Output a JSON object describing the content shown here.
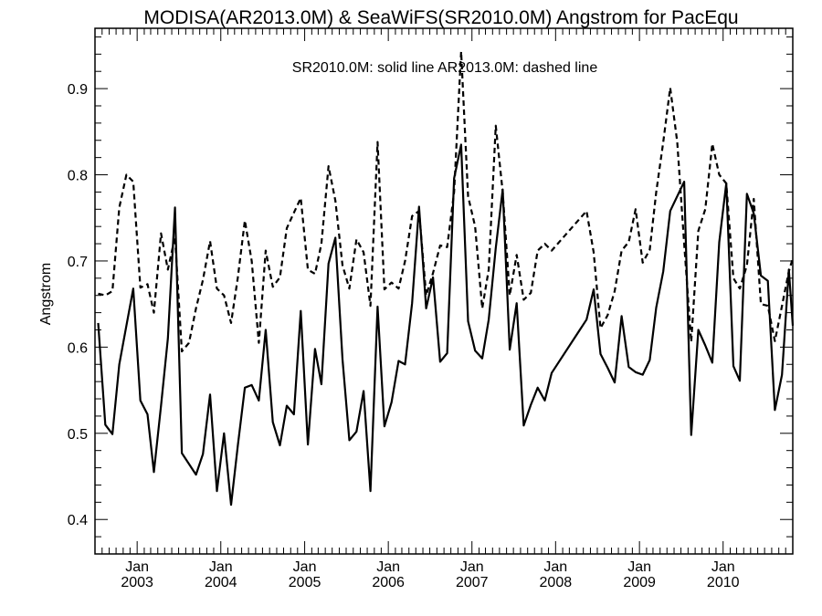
{
  "chart_data": {
    "type": "line",
    "title": "MODISA(AR2013.0M) & SeaWiFS(SR2010.0M)  Angstrom for PacEqu",
    "annotation": "SR2010.0M: solid line   AR2013.0M: dashed line",
    "ylabel": "Angstrom",
    "xlabel": "",
    "xlim": [
      "2002-07-01",
      "2010-11-01"
    ],
    "ylim": [
      0.36,
      0.97
    ],
    "y_ticks": [
      0.4,
      0.5,
      0.6,
      0.7,
      0.8,
      0.9
    ],
    "y_tick_labels": [
      "0.4",
      "0.5",
      "0.6",
      "0.7",
      "0.8",
      "0.9"
    ],
    "x_ticks": [
      {
        "date": "2003-01-01",
        "month_label": "Jan",
        "year_label": "2003"
      },
      {
        "date": "2004-01-01",
        "month_label": "Jan",
        "year_label": "2004"
      },
      {
        "date": "2005-01-01",
        "month_label": "Jan",
        "year_label": "2005"
      },
      {
        "date": "2006-01-01",
        "month_label": "Jan",
        "year_label": "2006"
      },
      {
        "date": "2007-01-01",
        "month_label": "Jan",
        "year_label": "2007"
      },
      {
        "date": "2008-01-01",
        "month_label": "Jan",
        "year_label": "2008"
      },
      {
        "date": "2009-01-01",
        "month_label": "Jan",
        "year_label": "2009"
      },
      {
        "date": "2010-01-01",
        "month_label": "Jan",
        "year_label": "2010"
      }
    ],
    "grid": false,
    "series": [
      {
        "name": "SR2010.0M",
        "style": "solid",
        "points": [
          [
            "2002-07-15",
            0.628
          ],
          [
            "2002-08-15",
            0.51
          ],
          [
            "2002-09-15",
            0.499
          ],
          [
            "2002-10-15",
            0.58
          ],
          [
            "2002-11-15",
            0.625
          ],
          [
            "2002-12-15",
            0.668
          ],
          [
            "2003-01-15",
            0.538
          ],
          [
            "2003-02-15",
            0.522
          ],
          [
            "2003-03-15",
            0.455
          ],
          [
            "2003-04-15",
            0.532
          ],
          [
            "2003-05-15",
            0.61
          ],
          [
            "2003-06-15",
            0.762
          ],
          [
            "2003-07-15",
            0.477
          ],
          [
            "2003-09-15",
            0.452
          ],
          [
            "2003-10-15",
            0.476
          ],
          [
            "2003-11-15",
            0.545
          ],
          [
            "2003-12-15",
            0.433
          ],
          [
            "2004-01-15",
            0.5
          ],
          [
            "2004-02-15",
            0.417
          ],
          [
            "2004-03-15",
            0.485
          ],
          [
            "2004-04-15",
            0.553
          ],
          [
            "2004-05-15",
            0.556
          ],
          [
            "2004-06-15",
            0.538
          ],
          [
            "2004-07-15",
            0.62
          ],
          [
            "2004-08-15",
            0.513
          ],
          [
            "2004-09-15",
            0.486
          ],
          [
            "2004-10-15",
            0.532
          ],
          [
            "2004-11-15",
            0.522
          ],
          [
            "2004-12-15",
            0.642
          ],
          [
            "2005-01-15",
            0.487
          ],
          [
            "2005-02-15",
            0.598
          ],
          [
            "2005-03-15",
            0.557
          ],
          [
            "2005-04-15",
            0.697
          ],
          [
            "2005-05-15",
            0.727
          ],
          [
            "2005-06-15",
            0.586
          ],
          [
            "2005-07-15",
            0.492
          ],
          [
            "2005-08-15",
            0.502
          ],
          [
            "2005-09-15",
            0.549
          ],
          [
            "2005-10-15",
            0.433
          ],
          [
            "2005-11-15",
            0.647
          ],
          [
            "2005-12-15",
            0.508
          ],
          [
            "2006-01-15",
            0.536
          ],
          [
            "2006-02-15",
            0.584
          ],
          [
            "2006-03-15",
            0.58
          ],
          [
            "2006-04-15",
            0.651
          ],
          [
            "2006-05-15",
            0.763
          ],
          [
            "2006-06-15",
            0.645
          ],
          [
            "2006-07-15",
            0.681
          ],
          [
            "2006-08-15",
            0.583
          ],
          [
            "2006-09-15",
            0.593
          ],
          [
            "2006-10-15",
            0.796
          ],
          [
            "2006-11-15",
            0.835
          ],
          [
            "2006-12-15",
            0.63
          ],
          [
            "2007-01-15",
            0.596
          ],
          [
            "2007-02-15",
            0.587
          ],
          [
            "2007-03-15",
            0.632
          ],
          [
            "2007-04-15",
            0.715
          ],
          [
            "2007-05-15",
            0.783
          ],
          [
            "2007-06-15",
            0.597
          ],
          [
            "2007-07-15",
            0.651
          ],
          [
            "2007-08-15",
            0.509
          ],
          [
            "2007-09-15",
            0.533
          ],
          [
            "2007-10-15",
            0.553
          ],
          [
            "2007-11-15",
            0.538
          ],
          [
            "2007-12-15",
            0.57
          ],
          [
            "2008-05-15",
            0.632
          ],
          [
            "2008-06-15",
            0.667
          ],
          [
            "2008-07-15",
            0.592
          ],
          [
            "2008-08-15",
            0.576
          ],
          [
            "2008-09-15",
            0.559
          ],
          [
            "2008-10-15",
            0.636
          ],
          [
            "2008-11-15",
            0.577
          ],
          [
            "2008-12-15",
            0.571
          ],
          [
            "2009-01-15",
            0.568
          ],
          [
            "2009-02-15",
            0.585
          ],
          [
            "2009-03-15",
            0.646
          ],
          [
            "2009-04-15",
            0.688
          ],
          [
            "2009-05-15",
            0.758
          ],
          [
            "2009-07-15",
            0.792
          ],
          [
            "2009-08-15",
            0.498
          ],
          [
            "2009-09-15",
            0.62
          ],
          [
            "2009-10-15",
            0.602
          ],
          [
            "2009-11-15",
            0.582
          ],
          [
            "2009-12-15",
            0.722
          ],
          [
            "2010-01-15",
            0.79
          ],
          [
            "2010-02-15",
            0.578
          ],
          [
            "2010-03-15",
            0.561
          ],
          [
            "2010-04-15",
            0.778
          ],
          [
            "2010-05-15",
            0.755
          ],
          [
            "2010-06-15",
            0.683
          ],
          [
            "2010-07-15",
            0.677
          ],
          [
            "2010-08-15",
            0.527
          ],
          [
            "2010-09-15",
            0.568
          ],
          [
            "2010-10-15",
            0.69
          ],
          [
            "2010-11-01",
            0.625
          ]
        ]
      },
      {
        "name": "AR2013.0M",
        "style": "dashed",
        "points": [
          [
            "2002-07-15",
            0.662
          ],
          [
            "2002-08-15",
            0.66
          ],
          [
            "2002-09-15",
            0.665
          ],
          [
            "2002-10-15",
            0.762
          ],
          [
            "2002-11-15",
            0.8
          ],
          [
            "2002-12-15",
            0.792
          ],
          [
            "2003-01-15",
            0.669
          ],
          [
            "2003-02-15",
            0.673
          ],
          [
            "2003-03-15",
            0.64
          ],
          [
            "2003-04-15",
            0.732
          ],
          [
            "2003-05-15",
            0.69
          ],
          [
            "2003-06-15",
            0.728
          ],
          [
            "2003-07-15",
            0.595
          ],
          [
            "2003-08-15",
            0.605
          ],
          [
            "2003-09-15",
            0.645
          ],
          [
            "2003-10-15",
            0.678
          ],
          [
            "2003-11-15",
            0.723
          ],
          [
            "2003-12-15",
            0.668
          ],
          [
            "2004-01-15",
            0.66
          ],
          [
            "2004-02-15",
            0.628
          ],
          [
            "2004-03-15",
            0.68
          ],
          [
            "2004-04-15",
            0.747
          ],
          [
            "2004-05-15",
            0.7
          ],
          [
            "2004-06-15",
            0.605
          ],
          [
            "2004-07-15",
            0.712
          ],
          [
            "2004-08-15",
            0.67
          ],
          [
            "2004-09-15",
            0.681
          ],
          [
            "2004-10-15",
            0.738
          ],
          [
            "2004-11-15",
            0.756
          ],
          [
            "2004-12-15",
            0.773
          ],
          [
            "2005-01-15",
            0.69
          ],
          [
            "2005-02-15",
            0.685
          ],
          [
            "2005-03-15",
            0.72
          ],
          [
            "2005-04-15",
            0.81
          ],
          [
            "2005-05-15",
            0.77
          ],
          [
            "2005-06-15",
            0.695
          ],
          [
            "2005-07-15",
            0.668
          ],
          [
            "2005-08-15",
            0.725
          ],
          [
            "2005-09-15",
            0.71
          ],
          [
            "2005-10-15",
            0.648
          ],
          [
            "2005-11-15",
            0.838
          ],
          [
            "2005-12-15",
            0.667
          ],
          [
            "2006-01-15",
            0.675
          ],
          [
            "2006-02-15",
            0.668
          ],
          [
            "2006-03-15",
            0.7
          ],
          [
            "2006-04-15",
            0.752
          ],
          [
            "2006-05-15",
            0.758
          ],
          [
            "2006-06-15",
            0.66
          ],
          [
            "2006-07-15",
            0.686
          ],
          [
            "2006-08-15",
            0.718
          ],
          [
            "2006-09-15",
            0.716
          ],
          [
            "2006-10-15",
            0.78
          ],
          [
            "2006-11-15",
            0.943
          ],
          [
            "2006-12-15",
            0.775
          ],
          [
            "2007-01-15",
            0.74
          ],
          [
            "2007-02-15",
            0.645
          ],
          [
            "2007-03-15",
            0.69
          ],
          [
            "2007-04-15",
            0.857
          ],
          [
            "2007-05-15",
            0.78
          ],
          [
            "2007-06-15",
            0.66
          ],
          [
            "2007-07-15",
            0.707
          ],
          [
            "2007-08-15",
            0.655
          ],
          [
            "2007-09-15",
            0.663
          ],
          [
            "2007-10-15",
            0.712
          ],
          [
            "2007-11-15",
            0.72
          ],
          [
            "2007-12-15",
            0.712
          ],
          [
            "2008-05-15",
            0.758
          ],
          [
            "2008-06-15",
            0.71
          ],
          [
            "2008-07-15",
            0.622
          ],
          [
            "2008-08-15",
            0.637
          ],
          [
            "2008-09-15",
            0.665
          ],
          [
            "2008-10-15",
            0.712
          ],
          [
            "2008-11-15",
            0.722
          ],
          [
            "2008-12-15",
            0.76
          ],
          [
            "2009-01-15",
            0.698
          ],
          [
            "2009-02-15",
            0.713
          ],
          [
            "2009-03-15",
            0.78
          ],
          [
            "2009-04-15",
            0.838
          ],
          [
            "2009-05-15",
            0.901
          ],
          [
            "2009-06-15",
            0.838
          ],
          [
            "2009-07-15",
            0.72
          ],
          [
            "2009-08-15",
            0.606
          ],
          [
            "2009-09-15",
            0.735
          ],
          [
            "2009-10-15",
            0.76
          ],
          [
            "2009-11-15",
            0.836
          ],
          [
            "2009-12-15",
            0.8
          ],
          [
            "2010-01-15",
            0.79
          ],
          [
            "2010-02-15",
            0.68
          ],
          [
            "2010-03-15",
            0.668
          ],
          [
            "2010-04-15",
            0.695
          ],
          [
            "2010-05-15",
            0.772
          ],
          [
            "2010-06-15",
            0.65
          ],
          [
            "2010-07-15",
            0.648
          ],
          [
            "2010-08-15",
            0.607
          ],
          [
            "2010-09-15",
            0.648
          ],
          [
            "2010-10-15",
            0.688
          ],
          [
            "2010-11-01",
            0.703
          ]
        ]
      }
    ]
  }
}
